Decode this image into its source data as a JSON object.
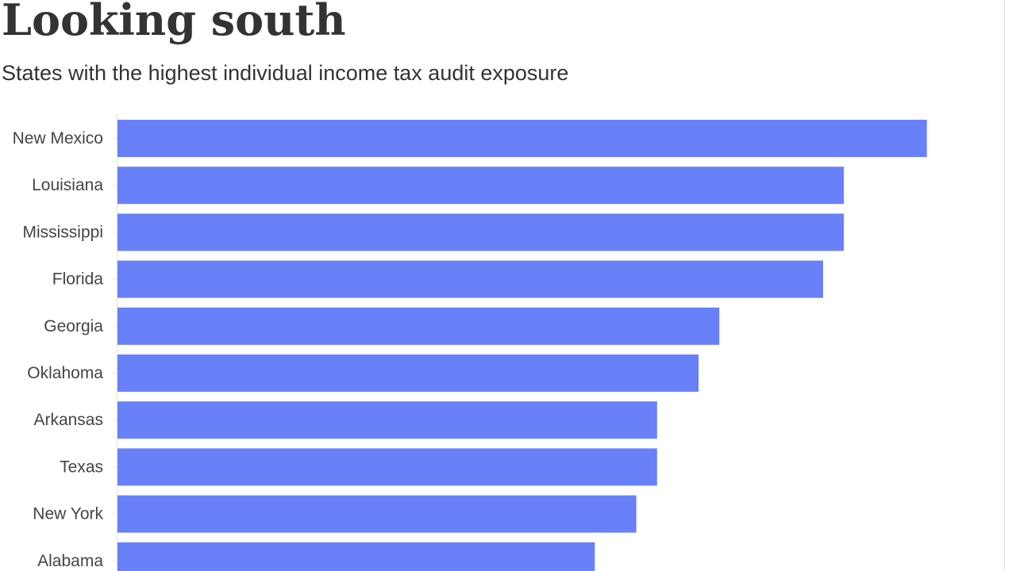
{
  "chart_data": {
    "type": "bar",
    "orientation": "horizontal",
    "title": "Looking south",
    "subtitle": "States with the highest individual income tax audit exposure",
    "categories": [
      "New Mexico",
      "Louisiana",
      "Mississippi",
      "Florida",
      "Georgia",
      "Oklahoma",
      "Arkansas",
      "Texas",
      "New York",
      "Alabama"
    ],
    "values": [
      3.9,
      3.5,
      3.5,
      3.4,
      2.9,
      2.8,
      2.6,
      2.6,
      2.5,
      2.3
    ],
    "xlim": [
      0,
      4.1
    ],
    "bar_color": "#6880f8",
    "grid": false
  }
}
